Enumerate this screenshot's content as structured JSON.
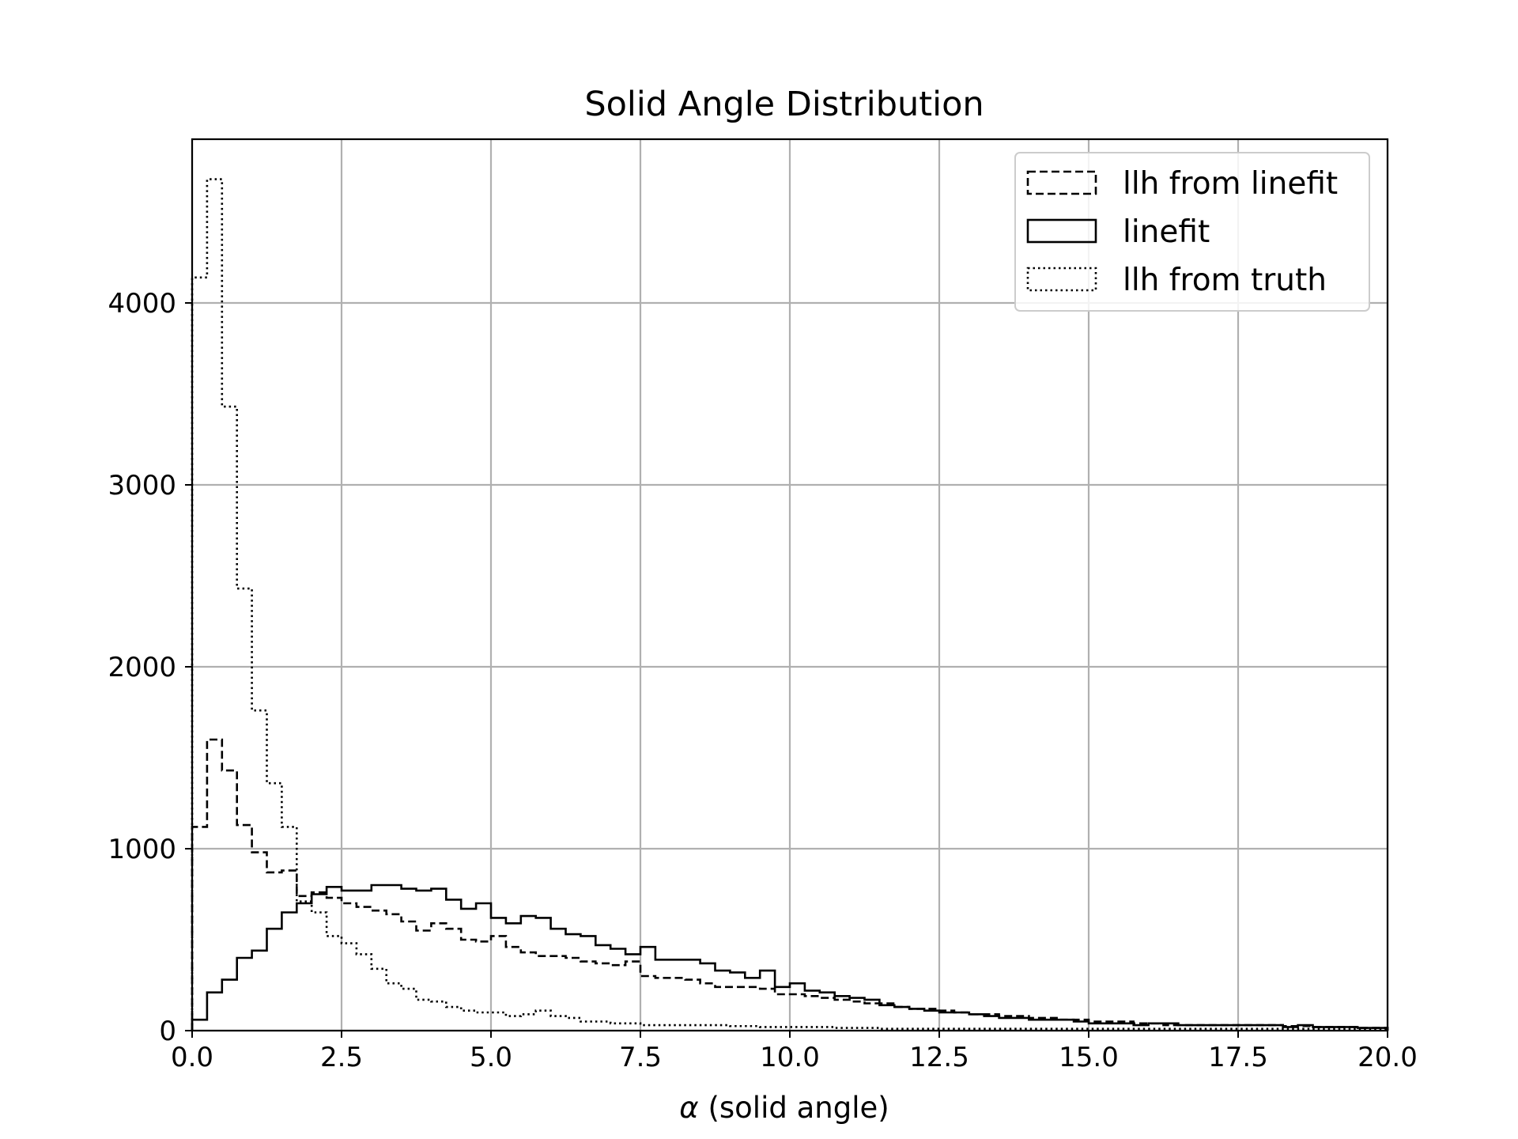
{
  "chart_data": {
    "type": "line",
    "drawstyle": "step",
    "title": "Solid Angle Distribution",
    "xlabel_symbol": "α",
    "xlabel_text": " (solid angle)",
    "ylabel": "",
    "xlim": [
      0,
      20
    ],
    "ylim": [
      0,
      4900
    ],
    "xticks": [
      0,
      2.5,
      5,
      7.5,
      10,
      12.5,
      15,
      17.5,
      20
    ],
    "xtick_labels": [
      "0.0",
      "2.5",
      "5.0",
      "7.5",
      "10.0",
      "12.5",
      "15.0",
      "17.5",
      "20.0"
    ],
    "yticks": [
      0,
      1000,
      2000,
      3000,
      4000
    ],
    "ytick_labels": [
      "0",
      "1000",
      "2000",
      "3000",
      "4000"
    ],
    "grid": true,
    "legend_position": "top-right",
    "bin_width": 0.25,
    "series": [
      {
        "name": "llh from linefit",
        "linestyle": "dashed",
        "color": "#000000",
        "values": [
          1120,
          1600,
          1430,
          1130,
          980,
          870,
          880,
          740,
          760,
          730,
          700,
          680,
          660,
          640,
          600,
          550,
          590,
          560,
          500,
          490,
          520,
          460,
          430,
          410,
          410,
          400,
          380,
          370,
          360,
          380,
          300,
          290,
          290,
          280,
          260,
          240,
          240,
          240,
          230,
          200,
          200,
          190,
          180,
          170,
          160,
          150,
          150,
          130,
          120,
          120,
          110,
          100,
          90,
          90,
          80,
          80,
          70,
          70,
          60,
          60,
          50,
          50,
          50,
          40,
          40,
          30,
          30,
          30,
          30,
          30,
          30,
          30,
          30,
          25,
          25,
          20,
          20,
          20,
          15,
          15
        ]
      },
      {
        "name": "linefit",
        "linestyle": "solid",
        "color": "#000000",
        "values": [
          60,
          210,
          280,
          400,
          440,
          560,
          650,
          700,
          750,
          790,
          770,
          770,
          800,
          800,
          780,
          770,
          780,
          720,
          670,
          700,
          620,
          590,
          630,
          620,
          560,
          530,
          520,
          470,
          450,
          420,
          460,
          390,
          390,
          390,
          370,
          330,
          320,
          290,
          330,
          240,
          260,
          220,
          210,
          190,
          180,
          170,
          140,
          130,
          120,
          110,
          100,
          100,
          90,
          80,
          70,
          70,
          60,
          60,
          60,
          50,
          40,
          40,
          40,
          30,
          40,
          40,
          30,
          30,
          30,
          30,
          30,
          30,
          30,
          20,
          30,
          20,
          20,
          20,
          15,
          15
        ]
      },
      {
        "name": "llh from truth",
        "linestyle": "dotted",
        "color": "#000000",
        "values": [
          4140,
          4680,
          3430,
          2430,
          1760,
          1360,
          1120,
          710,
          650,
          520,
          480,
          420,
          340,
          260,
          230,
          170,
          160,
          130,
          110,
          100,
          100,
          80,
          90,
          110,
          80,
          70,
          50,
          50,
          40,
          40,
          30,
          30,
          30,
          30,
          30,
          30,
          25,
          25,
          20,
          20,
          20,
          20,
          20,
          15,
          15,
          15,
          10,
          10,
          10,
          10,
          10,
          10,
          10,
          10,
          10,
          10,
          10,
          10,
          10,
          10,
          10,
          10,
          10,
          10,
          10,
          10,
          10,
          10,
          10,
          10,
          10,
          10,
          10,
          10,
          10,
          10,
          10,
          10,
          10,
          10
        ]
      }
    ]
  }
}
